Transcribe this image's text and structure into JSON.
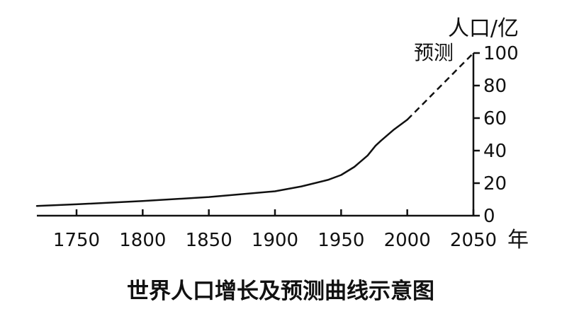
{
  "chart_data": {
    "type": "line",
    "title": "世界人口增长及预测曲线示意图",
    "xlabel": "年",
    "ylabel": "人口/亿",
    "xlim": [
      1720,
      2050
    ],
    "ylim": [
      0,
      100
    ],
    "x_ticks": [
      1750,
      1800,
      1850,
      1900,
      1950,
      2000,
      2050
    ],
    "y_ticks": [
      0,
      20,
      40,
      60,
      80,
      100
    ],
    "annotation": "预测",
    "grid": false,
    "series": [
      {
        "style": "solid",
        "points": [
          [
            1720,
            6
          ],
          [
            1750,
            7
          ],
          [
            1800,
            9
          ],
          [
            1850,
            11.5
          ],
          [
            1900,
            15
          ],
          [
            1920,
            18
          ],
          [
            1940,
            22
          ],
          [
            1950,
            25
          ],
          [
            1960,
            30
          ],
          [
            1970,
            37
          ],
          [
            1976,
            43
          ],
          [
            1980,
            46
          ],
          [
            1990,
            53
          ],
          [
            2000,
            59
          ]
        ]
      },
      {
        "style": "dashed",
        "points": [
          [
            2000,
            59
          ],
          [
            2050,
            100
          ]
        ]
      }
    ]
  }
}
